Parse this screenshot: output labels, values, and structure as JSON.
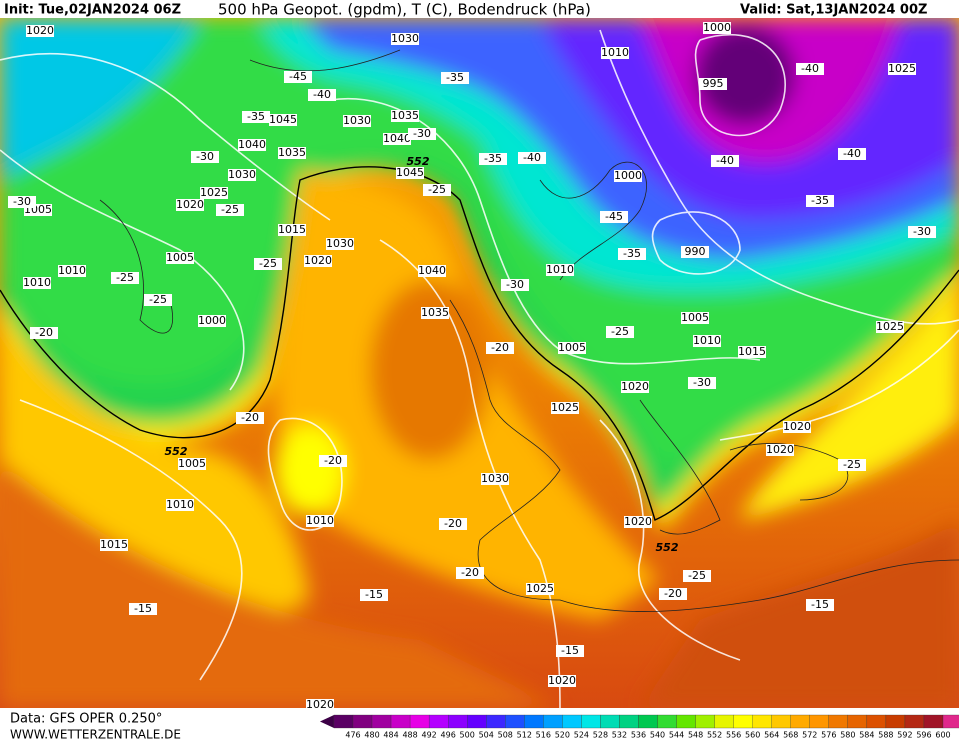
{
  "header": {
    "init": "Init: Tue,02JAN2024 06Z",
    "title": "500 hPa Geopot. (gpdm), T (C), Bodendruck (hPa)",
    "valid": "Valid: Sat,13JAN2024 00Z"
  },
  "footer": {
    "data": "Data: GFS OPER 0.250°",
    "site": "WWW.WETTERZENTRALE.DE"
  },
  "colorbar": {
    "labels": [
      476,
      480,
      484,
      488,
      492,
      496,
      500,
      504,
      508,
      512,
      516,
      520,
      524,
      528,
      532,
      536,
      540,
      544,
      548,
      552,
      556,
      560,
      564,
      568,
      572,
      576,
      580,
      584,
      588,
      592,
      596,
      600
    ]
  },
  "map": {
    "pressure_labels": [
      1020,
      1030,
      1010,
      1000,
      995,
      1025,
      1045,
      1035,
      1030,
      1040,
      1035,
      1040,
      1030,
      1045,
      1000,
      1025,
      1020,
      1005,
      1015,
      1030,
      1020,
      990,
      1040,
      1010,
      1010,
      1010,
      1005,
      1035,
      1000,
      1005,
      1025,
      1010,
      1005,
      1015,
      1020,
      1025,
      1020,
      1020,
      1005,
      1030,
      1010,
      1010,
      1020,
      1015,
      1025,
      1020,
      1020
    ],
    "temperature_labels": [
      -45,
      -40,
      -35,
      -40,
      -35,
      -30,
      -30,
      -35,
      -40,
      -40,
      -40,
      -30,
      -25,
      -25,
      -45,
      -35,
      -30,
      -35,
      -25,
      -25,
      -30,
      -25,
      -25,
      -20,
      -20,
      -30,
      -20,
      -20,
      -25,
      -20,
      -20,
      -25,
      -20,
      -15,
      -15,
      -15,
      -15
    ],
    "geopotential_labels": [
      552,
      552,
      552
    ]
  }
}
